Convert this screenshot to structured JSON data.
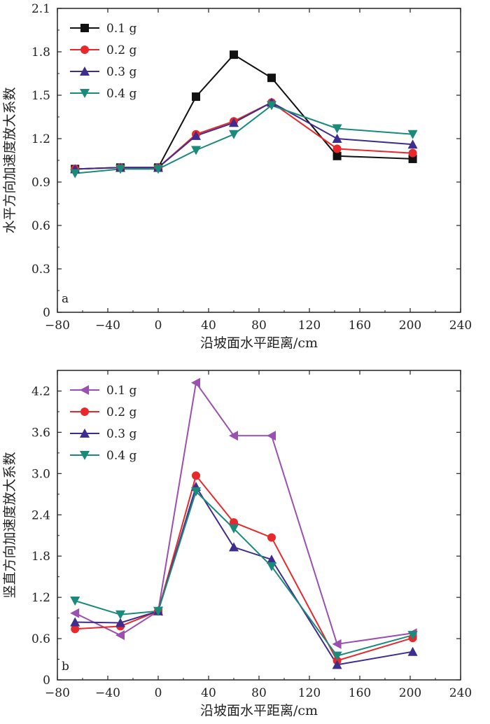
{
  "chart_data": [
    {
      "type": "line",
      "panel_label": "a",
      "xlabel": "沿坡面水平距离/cm",
      "ylabel": "水平方向加速度放大系数",
      "xlim": [
        -80,
        240
      ],
      "ylim": [
        0,
        2.1
      ],
      "x_ticks": [
        "-80",
        "-40",
        "0",
        "40",
        "80",
        "120",
        "160",
        "200",
        "240"
      ],
      "y_ticks": [
        "0",
        "0.3",
        "0.6",
        "0.9",
        "1.2",
        "1.5",
        "1.8",
        "2.1"
      ],
      "legend_position": "top-left",
      "x": [
        -66,
        -30,
        0,
        30,
        60,
        90,
        142,
        202
      ],
      "series": [
        {
          "name": "0.1 g",
          "color": "#111111",
          "marker": "square",
          "values": [
            0.99,
            1.0,
            1.0,
            1.49,
            1.78,
            1.62,
            1.08,
            1.06
          ]
        },
        {
          "name": "0.2 g",
          "color": "#e8292b",
          "marker": "circle",
          "values": [
            0.99,
            1.0,
            1.0,
            1.23,
            1.32,
            1.45,
            1.13,
            1.1
          ]
        },
        {
          "name": "0.3 g",
          "color": "#3f2c8f",
          "marker": "triangle-up",
          "values": [
            0.99,
            1.0,
            1.0,
            1.22,
            1.31,
            1.45,
            1.2,
            1.16
          ]
        },
        {
          "name": "0.4 g",
          "color": "#1a8a7a",
          "marker": "triangle-down",
          "values": [
            0.96,
            0.99,
            0.99,
            1.12,
            1.23,
            1.43,
            1.27,
            1.23
          ]
        }
      ]
    },
    {
      "type": "line",
      "panel_label": "b",
      "xlabel": "沿坡面水平距离/cm",
      "ylabel": "竖直方向加速度放大系数",
      "xlim": [
        -80,
        240
      ],
      "ylim": [
        0,
        4.5
      ],
      "x_ticks": [
        "-80",
        "-40",
        "0",
        "40",
        "80",
        "120",
        "160",
        "200",
        "240"
      ],
      "y_ticks": [
        "0",
        "0.6",
        "1.2",
        "1.8",
        "2.4",
        "3.0",
        "3.6",
        "4.2"
      ],
      "legend_position": "top-left",
      "x": [
        -66,
        -30,
        0,
        30,
        60,
        90,
        142,
        202
      ],
      "series": [
        {
          "name": "0.1 g",
          "color": "#9b4fb0",
          "marker": "triangle-left",
          "values": [
            0.97,
            0.65,
            1.0,
            4.32,
            3.55,
            3.55,
            0.52,
            0.68
          ]
        },
        {
          "name": "0.2 g",
          "color": "#e8292b",
          "marker": "circle",
          "values": [
            0.74,
            0.78,
            1.0,
            2.97,
            2.29,
            2.07,
            0.28,
            0.61
          ]
        },
        {
          "name": "0.3 g",
          "color": "#3f2c8f",
          "marker": "triangle-up",
          "values": [
            0.84,
            0.83,
            1.0,
            2.81,
            1.93,
            1.75,
            0.22,
            0.41
          ]
        },
        {
          "name": "0.4 g",
          "color": "#1a8a7a",
          "marker": "triangle-down",
          "values": [
            1.15,
            0.95,
            1.0,
            2.74,
            2.2,
            1.65,
            0.35,
            0.65
          ]
        }
      ]
    }
  ]
}
